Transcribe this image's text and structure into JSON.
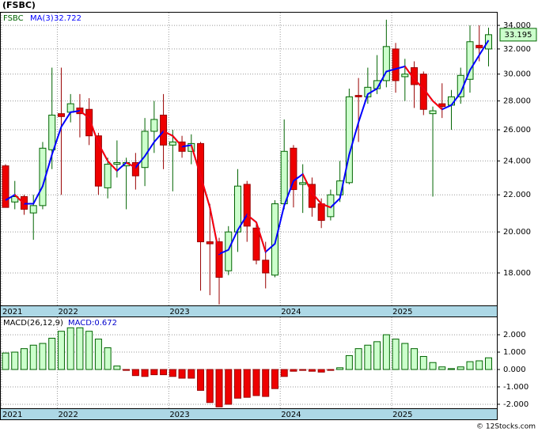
{
  "chart_data": [
    {
      "type": "candlestick",
      "title": "(FSBC)",
      "symbol": "FSBC",
      "categories": [
        "2021",
        null,
        null,
        null,
        null,
        null,
        "2022",
        null,
        null,
        null,
        null,
        null,
        null,
        null,
        null,
        null,
        null,
        null,
        "2023",
        null,
        null,
        null,
        null,
        null,
        null,
        null,
        null,
        null,
        null,
        null,
        "2024",
        null,
        null,
        null,
        null,
        null,
        null,
        null,
        null,
        null,
        null,
        null,
        "2025",
        null,
        null,
        null,
        null,
        null,
        null,
        null,
        null,
        null,
        null
      ],
      "open": [
        23.7,
        21.6,
        21.9,
        21.0,
        21.4,
        24.7,
        27.1,
        27.2,
        27.5,
        27.4,
        25.6,
        22.4,
        23.8,
        23.7,
        23.9,
        23.6,
        25.9,
        27.0,
        25.0,
        25.2,
        24.6,
        25.1,
        19.5,
        19.5,
        18.1,
        20.0,
        22.6,
        20.2,
        18.6,
        17.9,
        21.5,
        24.8,
        22.6,
        22.6,
        21.5,
        20.8,
        22.0,
        22.7,
        28.4,
        28.3,
        28.9,
        29.5,
        32.0,
        29.8,
        30.5,
        30.0,
        27.1,
        27.8,
        27.7,
        28.3,
        29.6,
        32.3,
        32.0
      ],
      "high": [
        23.8,
        22.8,
        22.0,
        22.0,
        25.2,
        30.5,
        30.5,
        28.5,
        28.5,
        28.2,
        25.8,
        24.2,
        25.3,
        24.2,
        24.5,
        26.8,
        28.0,
        28.5,
        26.0,
        25.6,
        25.7,
        25.2,
        21.5,
        19.7,
        20.3,
        23.5,
        22.8,
        20.4,
        19.5,
        21.7,
        26.7,
        25.0,
        23.8,
        23.0,
        21.8,
        22.3,
        24.0,
        28.9,
        29.7,
        30.5,
        31.5,
        34.5,
        32.5,
        31.2,
        31.0,
        30.2,
        27.6,
        29.3,
        28.8,
        30.5,
        34.0,
        34.0,
        33.8
      ],
      "low": [
        21.4,
        21.2,
        20.9,
        19.6,
        21.2,
        23.5,
        22.0,
        26.5,
        25.5,
        25.0,
        22.0,
        21.8,
        23.0,
        21.2,
        22.3,
        22.5,
        24.5,
        23.5,
        22.2,
        24.2,
        23.8,
        17.2,
        17.0,
        16.6,
        17.9,
        19.0,
        19.5,
        18.4,
        17.3,
        17.8,
        21.2,
        21.3,
        21.0,
        20.8,
        20.2,
        20.6,
        21.6,
        22.6,
        25.2,
        27.8,
        28.5,
        29.0,
        28.6,
        28.0,
        27.5,
        27.0,
        21.9,
        26.8,
        26.0,
        27.8,
        28.6,
        31.0,
        30.6
      ],
      "close": [
        21.3,
        21.9,
        21.2,
        21.4,
        24.8,
        27.0,
        26.9,
        27.8,
        27.1,
        25.6,
        22.5,
        23.8,
        23.9,
        23.9,
        23.1,
        25.9,
        26.7,
        25.0,
        25.2,
        24.6,
        25.1,
        19.5,
        19.4,
        17.8,
        20.0,
        22.5,
        20.3,
        18.6,
        18.0,
        21.5,
        24.6,
        22.3,
        22.7,
        21.3,
        20.6,
        22.0,
        22.8,
        28.3,
        28.3,
        29.0,
        29.5,
        32.2,
        29.5,
        30.0,
        29.2,
        27.4,
        27.3,
        27.6,
        28.3,
        29.9,
        32.6,
        32.1,
        33.195
      ],
      "up_color": "#ccffcc",
      "up_edge": "#006400",
      "down_color": "#ee0000",
      "down_edge": "#990000",
      "series": [
        {
          "name": "MA(3)",
          "color": "#0000ff",
          "falling_color": "#ff0000",
          "values": [
            21.7,
            22.0,
            21.5,
            21.5,
            22.5,
            24.4,
            26.2,
            27.2,
            27.3,
            26.8,
            25.1,
            24.0,
            23.4,
            23.9,
            23.6,
            24.3,
            25.2,
            25.9,
            25.6,
            24.9,
            25.0,
            23.1,
            21.3,
            18.9,
            19.1,
            20.1,
            20.9,
            20.5,
            19.0,
            19.4,
            21.4,
            22.8,
            23.2,
            22.1,
            21.5,
            21.3,
            21.8,
            24.4,
            26.5,
            28.5,
            28.9,
            30.2,
            30.4,
            30.6,
            29.6,
            28.9,
            28.0,
            27.4,
            27.7,
            28.6,
            30.3,
            31.5,
            32.722
          ]
        }
      ],
      "log_scale": true,
      "grid": true,
      "ylim": [
        16.56,
        35.2
      ],
      "yticks": [
        {
          "value": 18,
          "label": "18.000"
        },
        {
          "value": 20,
          "label": "20.000"
        },
        {
          "value": 22,
          "label": "22.000"
        },
        {
          "value": 24,
          "label": "24.000"
        },
        {
          "value": 26,
          "label": "26.000"
        },
        {
          "value": 28,
          "label": "28.000"
        },
        {
          "value": 30,
          "label": "30.000"
        },
        {
          "value": 32,
          "label": "32.000"
        },
        {
          "value": 34,
          "label": "34.000"
        }
      ]
    },
    {
      "type": "bar",
      "title": "MACD(26,12,9)",
      "value_label": "MACD:0.672",
      "categories": [
        "2021",
        null,
        null,
        null,
        null,
        null,
        "2022",
        null,
        null,
        null,
        null,
        null,
        null,
        null,
        null,
        null,
        null,
        null,
        "2023",
        null,
        null,
        null,
        null,
        null,
        null,
        null,
        null,
        null,
        null,
        null,
        "2024",
        null,
        null,
        null,
        null,
        null,
        null,
        null,
        null,
        null,
        null,
        null,
        "2025",
        null,
        null,
        null,
        null,
        null,
        null,
        null,
        null,
        null,
        null
      ],
      "values": [
        0.95,
        1.0,
        1.2,
        1.4,
        1.5,
        1.8,
        2.2,
        2.4,
        2.4,
        2.2,
        1.75,
        1.25,
        0.2,
        -0.05,
        -0.35,
        -0.4,
        -0.3,
        -0.3,
        -0.4,
        -0.5,
        -0.5,
        -1.2,
        -1.9,
        -2.15,
        -2.0,
        -1.65,
        -1.6,
        -1.5,
        -1.55,
        -1.1,
        -0.4,
        -0.1,
        -0.05,
        -0.1,
        -0.15,
        -0.05,
        0.1,
        0.8,
        1.2,
        1.4,
        1.6,
        2.0,
        1.75,
        1.5,
        1.2,
        0.75,
        0.4,
        0.15,
        0.05,
        0.15,
        0.45,
        0.5,
        0.672
      ],
      "up_color": "#ccffcc",
      "up_edge": "#006400",
      "down_color": "#ee0000",
      "down_edge": "#990000",
      "grid": true,
      "ylim": [
        -2.23,
        3.05
      ],
      "yticks": [
        {
          "value": -2,
          "label": "-2.000"
        },
        {
          "value": -1,
          "label": "-1.000"
        },
        {
          "value": 0,
          "label": "0.000"
        },
        {
          "value": 1,
          "label": "1.000"
        },
        {
          "value": 2,
          "label": "2.000"
        }
      ]
    }
  ],
  "footer": "© 12Stocks.com"
}
